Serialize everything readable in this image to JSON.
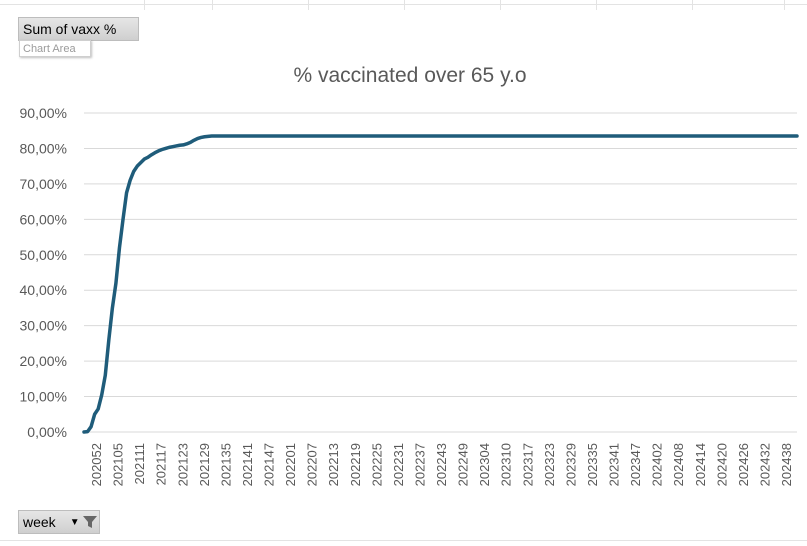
{
  "pivot": {
    "values_button": "Sum of vaxx %",
    "axis_button": "week",
    "chart_area_tooltip": "Chart Area"
  },
  "colors": {
    "line": "#1f5c7a",
    "gridline": "#d9d9d9",
    "text": "#595959"
  },
  "chart_data": {
    "type": "line",
    "title": "% vaccinated over 65 y.o",
    "xlabel": "",
    "ylabel": "",
    "ylim": [
      0,
      90
    ],
    "yticks": [
      "0,00%",
      "10,00%",
      "20,00%",
      "30,00%",
      "40,00%",
      "50,00%",
      "60,00%",
      "70,00%",
      "80,00%",
      "90,00%"
    ],
    "xtick_labels": [
      "202052",
      "202105",
      "202111",
      "202117",
      "202123",
      "202129",
      "202135",
      "202141",
      "202147",
      "202201",
      "202207",
      "202213",
      "202219",
      "202225",
      "202231",
      "202237",
      "202243",
      "202249",
      "202304",
      "202310",
      "202317",
      "202323",
      "202329",
      "202335",
      "202341",
      "202347",
      "202402",
      "202408",
      "202414",
      "202420",
      "202426",
      "202432",
      "202438"
    ],
    "grid": true,
    "legend": "none",
    "series": [
      {
        "values": [
          0.0,
          0.1,
          1.5,
          5.0,
          6.5,
          10.5,
          16.0,
          26.0,
          35.0,
          42.0,
          52.0,
          60.0,
          67.5,
          71.0,
          73.5,
          75.0,
          76.0,
          77.0,
          77.5,
          78.2,
          78.8,
          79.3,
          79.7,
          80.0,
          80.3,
          80.5,
          80.7,
          80.9,
          81.0,
          81.3,
          81.7,
          82.3,
          82.8,
          83.1,
          83.3,
          83.4,
          83.5,
          83.5,
          83.5,
          83.5,
          83.5,
          83.5,
          83.5,
          83.5,
          83.5,
          83.5,
          83.5,
          83.5,
          83.5,
          83.5,
          83.5,
          83.5,
          83.5,
          83.5,
          83.5,
          83.5,
          83.5,
          83.5,
          83.5,
          83.5,
          83.5,
          83.5,
          83.5,
          83.5,
          83.5,
          83.5,
          83.5,
          83.5,
          83.5,
          83.5,
          83.5,
          83.5,
          83.5,
          83.5,
          83.5,
          83.5,
          83.5,
          83.5,
          83.5,
          83.5,
          83.5,
          83.5,
          83.5,
          83.5,
          83.5,
          83.5,
          83.5,
          83.5,
          83.5,
          83.5,
          83.5,
          83.5,
          83.5,
          83.5,
          83.5,
          83.5,
          83.5,
          83.5,
          83.5,
          83.5,
          83.5,
          83.5,
          83.5,
          83.5,
          83.5,
          83.5,
          83.5,
          83.5,
          83.5,
          83.5,
          83.5,
          83.5,
          83.5,
          83.5,
          83.5,
          83.5,
          83.5,
          83.5,
          83.5,
          83.5,
          83.5,
          83.5,
          83.5,
          83.5,
          83.5,
          83.5,
          83.5,
          83.5,
          83.5,
          83.5,
          83.5,
          83.5,
          83.5,
          83.5,
          83.5,
          83.5,
          83.5,
          83.5,
          83.5,
          83.5,
          83.5,
          83.5,
          83.5,
          83.5,
          83.5,
          83.5,
          83.5,
          83.5,
          83.5,
          83.5,
          83.5,
          83.5,
          83.5,
          83.5,
          83.5,
          83.5,
          83.5,
          83.5,
          83.5,
          83.5,
          83.5,
          83.5,
          83.5,
          83.5,
          83.5,
          83.5,
          83.5,
          83.5,
          83.5,
          83.5,
          83.5,
          83.5,
          83.5,
          83.5,
          83.5,
          83.5,
          83.5,
          83.5,
          83.5,
          83.5,
          83.5,
          83.5,
          83.5,
          83.5,
          83.5,
          83.5,
          83.5,
          83.5,
          83.5,
          83.5,
          83.5,
          83.5,
          83.5,
          83.5,
          83.5,
          83.5,
          83.5,
          83.5,
          83.5,
          83.5,
          83.5,
          83.5
        ]
      }
    ]
  }
}
